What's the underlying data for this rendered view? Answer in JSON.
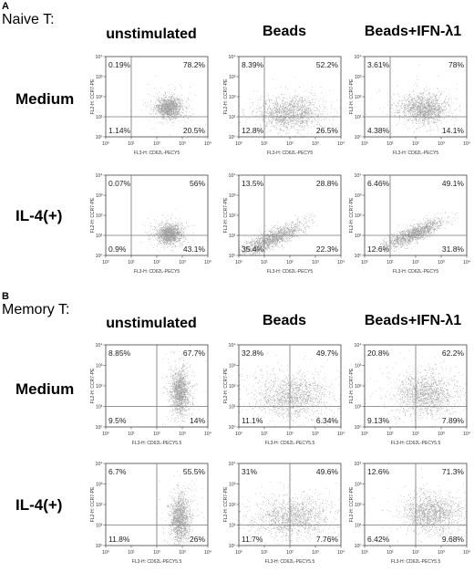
{
  "figure": {
    "panels": [
      {
        "letter": "A",
        "title": "Naive T:",
        "columns": [
          "unstimulated",
          "Beads",
          "Beads+IFN-λ1"
        ],
        "rows": [
          "Medium",
          "IL-4(+)"
        ]
      },
      {
        "letter": "B",
        "title": "Memory T:",
        "columns": [
          "unstimulated",
          "Beads",
          "Beads+IFN-λ1"
        ],
        "rows": [
          "Medium",
          "IL-4(+)"
        ]
      }
    ]
  },
  "chart_data": [
    {
      "type": "scatter",
      "panel": "A",
      "row": "Medium",
      "column": "unstimulated",
      "xlabel": "FL3-H: CD62L-PECY5",
      "ylabel": "FL2-H: CCR7-PE",
      "x_ticks": [
        "10⁰",
        "10¹",
        "10²",
        "10³",
        "10⁴"
      ],
      "y_ticks": [
        "10⁰",
        "10¹",
        "10²",
        "10³",
        "10⁴"
      ],
      "quadrants": {
        "upper_left": "0.19%",
        "upper_right": "78.2%",
        "lower_left": "1.14%",
        "lower_right": "20.5%"
      },
      "gate": {
        "x": 10,
        "y": 10
      },
      "cloud": {
        "center": [
          300,
          30
        ],
        "spread": [
          0.25,
          0.25
        ],
        "density": "tight"
      }
    },
    {
      "type": "scatter",
      "panel": "A",
      "row": "Medium",
      "column": "Beads",
      "xlabel": "FL3-H: CD62L-PECY5",
      "ylabel": "FL2-H: CCR7-PE",
      "x_ticks": [
        "10⁰",
        "10¹",
        "10²",
        "10³",
        "10⁴"
      ],
      "y_ticks": [
        "10⁰",
        "10¹",
        "10²",
        "10³",
        "10⁴"
      ],
      "quadrants": {
        "upper_left": "8.39%",
        "upper_right": "52.2%",
        "lower_left": "12.8%",
        "lower_right": "26.5%"
      },
      "gate": {
        "x": 10,
        "y": 10
      },
      "cloud": {
        "center": [
          100,
          15
        ],
        "spread": [
          0.6,
          0.4
        ],
        "density": "broad"
      }
    },
    {
      "type": "scatter",
      "panel": "A",
      "row": "Medium",
      "column": "Beads+IFN-λ1",
      "xlabel": "FL3-H: CD62L-PECY5",
      "ylabel": "FL2-H: CCR7-PE",
      "x_ticks": [
        "10⁰",
        "10¹",
        "10²",
        "10³",
        "10⁴"
      ],
      "y_ticks": [
        "10⁰",
        "10¹",
        "10²",
        "10³",
        "10⁴"
      ],
      "quadrants": {
        "upper_left": "3.61%",
        "upper_right": "78%",
        "lower_left": "4.38%",
        "lower_right": "14.1%"
      },
      "gate": {
        "x": 10,
        "y": 10
      },
      "cloud": {
        "center": [
          200,
          25
        ],
        "spread": [
          0.45,
          0.35
        ],
        "density": "broad"
      }
    },
    {
      "type": "scatter",
      "panel": "A",
      "row": "IL-4(+)",
      "column": "unstimulated",
      "xlabel": "FL3-H: CD62L-PECY5",
      "ylabel": "FL2-H: CCR7-PE",
      "x_ticks": [
        "10⁰",
        "10¹",
        "10²",
        "10³",
        "10⁴"
      ],
      "y_ticks": [
        "10⁰",
        "10¹",
        "10²",
        "10³",
        "10⁴"
      ],
      "quadrants": {
        "upper_left": "0.07%",
        "upper_right": "56%",
        "lower_left": "0.9%",
        "lower_right": "43.1%"
      },
      "gate": {
        "x": 10,
        "y": 10
      },
      "cloud": {
        "center": [
          300,
          12
        ],
        "spread": [
          0.25,
          0.25
        ],
        "density": "tight"
      }
    },
    {
      "type": "scatter",
      "panel": "A",
      "row": "IL-4(+)",
      "column": "Beads",
      "xlabel": "FL3-H: CD62L-PECY5",
      "ylabel": "FL2-H: CCR7-PE",
      "x_ticks": [
        "10⁰",
        "10¹",
        "10²",
        "10³",
        "10⁴"
      ],
      "y_ticks": [
        "10⁰",
        "10¹",
        "10²",
        "10³",
        "10⁴"
      ],
      "quadrants": {
        "upper_left": "13.5%",
        "upper_right": "28.8%",
        "lower_left": "35.4%",
        "lower_right": "22.3%"
      },
      "gate": {
        "x": 10,
        "y": 10
      },
      "cloud": {
        "center": [
          20,
          7
        ],
        "spread": [
          0.6,
          0.45
        ],
        "density": "diagonal"
      }
    },
    {
      "type": "scatter",
      "panel": "A",
      "row": "IL-4(+)",
      "column": "Beads+IFN-λ1",
      "xlabel": "FL3-H: CD62L-PECY5",
      "ylabel": "FL2-H: CCR7-PE",
      "x_ticks": [
        "10⁰",
        "10¹",
        "10²",
        "10³",
        "10⁴"
      ],
      "y_ticks": [
        "10⁰",
        "10¹",
        "10²",
        "10³",
        "10⁴"
      ],
      "quadrants": {
        "upper_left": "6.46%",
        "upper_right": "49.1%",
        "lower_left": "12.6%",
        "lower_right": "31.8%"
      },
      "gate": {
        "x": 10,
        "y": 10
      },
      "cloud": {
        "center": [
          80,
          12
        ],
        "spread": [
          0.55,
          0.4
        ],
        "density": "diagonal"
      }
    },
    {
      "type": "scatter",
      "panel": "B",
      "row": "Medium",
      "column": "unstimulated",
      "xlabel": "FL3-H: CD62L-PECY5.5",
      "ylabel": "FL2-H: CCR7-PE",
      "x_ticks": [
        "10⁰",
        "10¹",
        "10²",
        "10³",
        "10⁴"
      ],
      "y_ticks": [
        "10⁰",
        "10¹",
        "10²",
        "10³",
        "10⁴"
      ],
      "quadrants": {
        "upper_left": "8.85%",
        "upper_right": "67.7%",
        "lower_left": "9.5%",
        "lower_right": "14%"
      },
      "gate": {
        "x": 100,
        "y": 10
      },
      "cloud": {
        "center": [
          800,
          50
        ],
        "spread": [
          0.18,
          0.55
        ],
        "density": "vertical"
      }
    },
    {
      "type": "scatter",
      "panel": "B",
      "row": "Medium",
      "column": "Beads",
      "xlabel": "FL3-H: CD62L-PECY5.5",
      "ylabel": "FL2-H: CCR7-PE",
      "x_ticks": [
        "10⁰",
        "10¹",
        "10²",
        "10³",
        "10⁴"
      ],
      "y_ticks": [
        "10⁰",
        "10¹",
        "10²",
        "10³",
        "10⁴"
      ],
      "quadrants": {
        "upper_left": "32.8%",
        "upper_right": "49.7%",
        "lower_left": "11.1%",
        "lower_right": "6.34%"
      },
      "gate": {
        "x": 100,
        "y": 10
      },
      "cloud": {
        "center": [
          120,
          30
        ],
        "spread": [
          0.7,
          0.5
        ],
        "density": "broad"
      }
    },
    {
      "type": "scatter",
      "panel": "B",
      "row": "Medium",
      "column": "Beads+IFN-λ1",
      "xlabel": "FL3-H: CD62L-PECY5.5",
      "ylabel": "FL2-H: CCR7-PE",
      "x_ticks": [
        "10⁰",
        "10¹",
        "10²",
        "10³",
        "10⁴"
      ],
      "y_ticks": [
        "10⁰",
        "10¹",
        "10²",
        "10³",
        "10⁴"
      ],
      "quadrants": {
        "upper_left": "20.8%",
        "upper_right": "62.2%",
        "lower_left": "9.13%",
        "lower_right": "7.89%"
      },
      "gate": {
        "x": 100,
        "y": 10
      },
      "cloud": {
        "center": [
          250,
          40
        ],
        "spread": [
          0.6,
          0.5
        ],
        "density": "broad"
      }
    },
    {
      "type": "scatter",
      "panel": "B",
      "row": "IL-4(+)",
      "column": "unstimulated",
      "xlabel": "FL3-H: CD62L-PECY5.5",
      "ylabel": "FL2-H: CCR7-PE",
      "x_ticks": [
        "10⁰",
        "10¹",
        "10²",
        "10³",
        "10⁴"
      ],
      "y_ticks": [
        "10⁰",
        "10¹",
        "10²",
        "10³",
        "10⁴"
      ],
      "quadrants": {
        "upper_left": "6.7%",
        "upper_right": "55.5%",
        "lower_left": "11.8%",
        "lower_right": "26%"
      },
      "gate": {
        "x": 100,
        "y": 10
      },
      "cloud": {
        "center": [
          800,
          20
        ],
        "spread": [
          0.18,
          0.55
        ],
        "density": "vertical"
      }
    },
    {
      "type": "scatter",
      "panel": "B",
      "row": "IL-4(+)",
      "column": "Beads",
      "xlabel": "FL3-H: CD62L-PECY5.5",
      "ylabel": "FL2-H: CCR7-PE",
      "x_ticks": [
        "10⁰",
        "10¹",
        "10²",
        "10³",
        "10⁴"
      ],
      "y_ticks": [
        "10⁰",
        "10¹",
        "10²",
        "10³",
        "10⁴"
      ],
      "quadrants": {
        "upper_left": "31%",
        "upper_right": "49.6%",
        "lower_left": "11.7%",
        "lower_right": "7.76%"
      },
      "gate": {
        "x": 100,
        "y": 10
      },
      "cloud": {
        "center": [
          120,
          25
        ],
        "spread": [
          0.7,
          0.5
        ],
        "density": "broad"
      }
    },
    {
      "type": "scatter",
      "panel": "B",
      "row": "IL-4(+)",
      "column": "Beads+IFN-λ1",
      "xlabel": "FL3-H: CD62L-PECY5.5",
      "ylabel": "FL2-H: CCR7-PE",
      "x_ticks": [
        "10⁰",
        "10¹",
        "10²",
        "10³",
        "10⁴"
      ],
      "y_ticks": [
        "10⁰",
        "10¹",
        "10²",
        "10³",
        "10⁴"
      ],
      "quadrants": {
        "upper_left": "12.6%",
        "upper_right": "71.3%",
        "lower_left": "6.42%",
        "lower_right": "9.68%"
      },
      "gate": {
        "x": 100,
        "y": 10
      },
      "cloud": {
        "center": [
          400,
          40
        ],
        "spread": [
          0.55,
          0.45
        ],
        "density": "broad"
      }
    }
  ]
}
